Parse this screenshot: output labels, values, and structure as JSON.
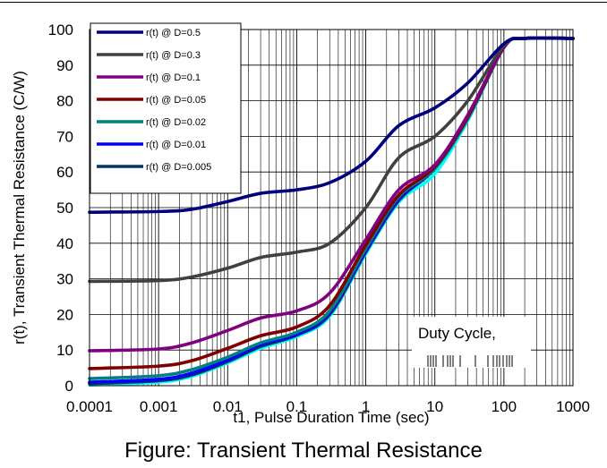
{
  "chart_data": {
    "type": "line",
    "title": "",
    "caption": "Figure:  Transient Thermal Resistance",
    "xlabel": "t1, Pulse Duration Time (sec)",
    "ylabel": "r(t), Transient Thermal Resistance (C/W)",
    "x_scale": "log",
    "xlim": [
      0.0001,
      1000
    ],
    "ylim": [
      0,
      100
    ],
    "x_ticks": [
      "0.0001",
      "0.001",
      "0.01",
      "0.1",
      "1",
      "10",
      "100",
      "1000"
    ],
    "y_ticks": [
      "0",
      "10",
      "20",
      "30",
      "40",
      "50",
      "60",
      "70",
      "80",
      "90",
      "100"
    ],
    "grid": true,
    "legend_position": "top-left",
    "annotation": "Duty Cycle,",
    "series": [
      {
        "name": "r(t) @ D=0.5",
        "color": "#00007f",
        "x": [
          0.0001,
          0.001,
          0.003,
          0.01,
          0.03,
          0.1,
          0.3,
          1,
          3,
          10,
          30,
          100,
          200,
          1000
        ],
        "y": [
          48.7,
          48.9,
          49.5,
          51.7,
          54.0,
          55.0,
          57.0,
          63.0,
          73.0,
          78.0,
          85.0,
          96.0,
          97.5,
          97.5
        ]
      },
      {
        "name": "r(t) @ D=0.3",
        "color": "#404040",
        "x": [
          0.0001,
          0.001,
          0.003,
          0.01,
          0.03,
          0.1,
          0.3,
          1,
          3,
          10,
          30,
          100,
          200,
          1000
        ],
        "y": [
          29.3,
          29.5,
          30.5,
          33.0,
          36.0,
          37.5,
          40.0,
          50.0,
          64.0,
          70.0,
          80.0,
          95.5,
          97.5,
          97.5
        ]
      },
      {
        "name": "r(t) @ D=0.1",
        "color": "#800080",
        "x": [
          0.0001,
          0.001,
          0.003,
          0.01,
          0.03,
          0.1,
          0.3,
          1,
          3,
          10,
          30,
          100,
          200,
          1000
        ],
        "y": [
          9.8,
          10.3,
          12.0,
          15.5,
          19.0,
          21.0,
          26.0,
          41.0,
          55.0,
          62.0,
          76.0,
          95.0,
          97.5,
          97.5
        ]
      },
      {
        "name": "r(t) @ D=0.05",
        "color": "#800000",
        "x": [
          0.0001,
          0.001,
          0.003,
          0.01,
          0.03,
          0.1,
          0.3,
          1,
          3,
          10,
          30,
          100,
          200,
          1000
        ],
        "y": [
          4.8,
          5.5,
          7.0,
          10.5,
          14.0,
          16.5,
          22.5,
          39.5,
          53.5,
          61.5,
          75.5,
          95.0,
          97.5,
          97.5
        ]
      },
      {
        "name": "r(t) @ D=0.02",
        "color": "#008080",
        "x": [
          0.0001,
          0.001,
          0.003,
          0.01,
          0.03,
          0.1,
          0.3,
          1,
          3,
          10,
          30,
          100,
          200,
          1000
        ],
        "y": [
          2.0,
          2.8,
          4.5,
          8.0,
          12.0,
          15.0,
          21.0,
          38.5,
          53.0,
          61.0,
          75.0,
          95.0,
          97.5,
          97.5
        ]
      },
      {
        "name": "r(t) @ D=0.01",
        "color": "#0000ff",
        "x": [
          0.0001,
          0.001,
          0.003,
          0.01,
          0.03,
          0.1,
          0.3,
          1,
          3,
          10,
          30,
          100,
          200,
          1000
        ],
        "y": [
          1.0,
          1.8,
          3.5,
          7.2,
          11.5,
          14.5,
          20.5,
          38.0,
          52.5,
          61.0,
          75.0,
          95.0,
          97.5,
          97.5
        ]
      },
      {
        "name": "r(t) @ D=0.005",
        "color": "#003366",
        "x": [
          0.0001,
          0.001,
          0.003,
          0.01,
          0.03,
          0.1,
          0.3,
          1,
          3,
          10,
          30,
          100,
          200,
          1000
        ],
        "y": [
          0.6,
          1.4,
          3.0,
          6.8,
          11.0,
          14.2,
          20.0,
          37.5,
          52.0,
          61.0,
          75.0,
          95.0,
          97.5,
          97.5
        ]
      },
      {
        "name": "",
        "color": "#00ffff",
        "x": [
          0.0001,
          0.001,
          0.003,
          0.01,
          0.03,
          0.1,
          0.3,
          1,
          3,
          10,
          30,
          100,
          200,
          1000
        ],
        "y": [
          0.2,
          1.0,
          2.6,
          6.4,
          10.5,
          13.8,
          19.5,
          37.0,
          51.5,
          59.5,
          74.5,
          95.0,
          97.5,
          97.5
        ]
      }
    ]
  }
}
